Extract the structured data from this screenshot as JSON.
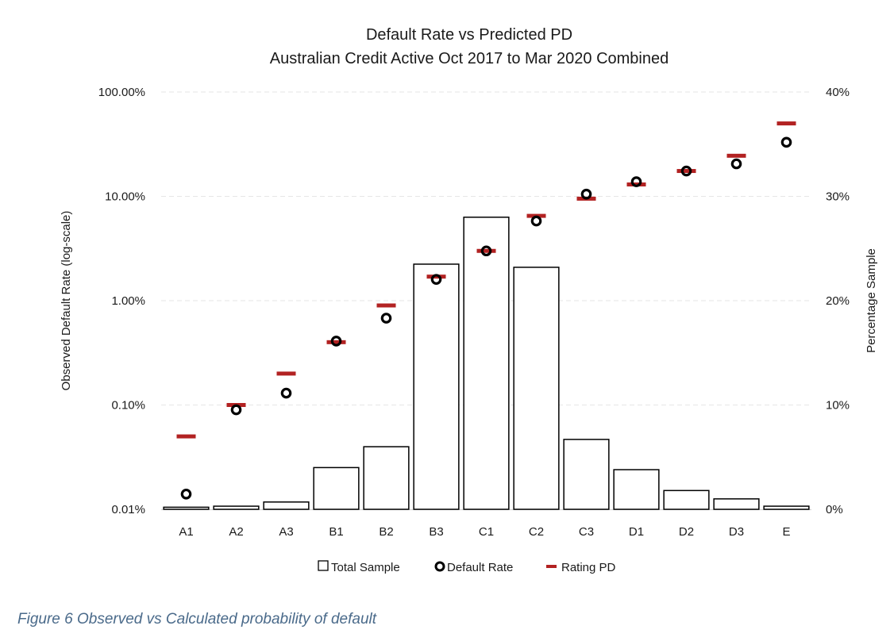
{
  "chart_data": {
    "type": "bar",
    "title": "Default Rate vs Predicted PD",
    "subtitle": "Australian Credit Active Oct 2017 to Mar 2020 Combined",
    "categories": [
      "A1",
      "A2",
      "A3",
      "B1",
      "B2",
      "B3",
      "C1",
      "C2",
      "C3",
      "D1",
      "D2",
      "D3",
      "E"
    ],
    "y_left": {
      "label": "Observed Default Rate (log-scale)",
      "scale": "log",
      "range": [
        0.0001,
        1
      ],
      "ticks": [
        0.0001,
        0.001,
        0.01,
        0.1,
        1
      ],
      "tick_labels": [
        "0.01%",
        "0.10%",
        "1.00%",
        "10.00%",
        "100.00%"
      ]
    },
    "y_right": {
      "label": "Percentage Sample",
      "scale": "linear",
      "range": [
        0,
        0.4
      ],
      "ticks": [
        0,
        0.1,
        0.2,
        0.3,
        0.4
      ],
      "tick_labels": [
        "0%",
        "10%",
        "20%",
        "30%",
        "40%"
      ]
    },
    "grid": true,
    "legend_position": "bottom",
    "series": [
      {
        "name": "Total Sample",
        "kind": "bar",
        "axis": "right",
        "values": [
          0.002,
          0.003,
          0.007,
          0.04,
          0.06,
          0.235,
          0.28,
          0.232,
          0.067,
          0.038,
          0.018,
          0.01,
          0.003
        ]
      },
      {
        "name": "Default Rate",
        "kind": "scatter",
        "axis": "left",
        "marker": "circle",
        "values": [
          0.00014,
          0.0009,
          0.0013,
          0.0041,
          0.0068,
          0.016,
          0.03,
          0.058,
          0.105,
          0.138,
          0.175,
          0.205,
          0.33
        ]
      },
      {
        "name": "Rating PD",
        "kind": "marker",
        "axis": "left",
        "marker": "dash",
        "values": [
          0.0005,
          0.001,
          0.002,
          0.004,
          0.009,
          0.017,
          0.03,
          0.065,
          0.095,
          0.13,
          0.175,
          0.245,
          0.5
        ]
      }
    ],
    "colors": {
      "bar_fill": "#ffffff",
      "bar_stroke": "#000000",
      "default_rate": "#000000",
      "rating_pd": "#b22222",
      "grid": "#e6e6e6"
    }
  },
  "caption": "Figure 6 Observed vs Calculated probability of default"
}
